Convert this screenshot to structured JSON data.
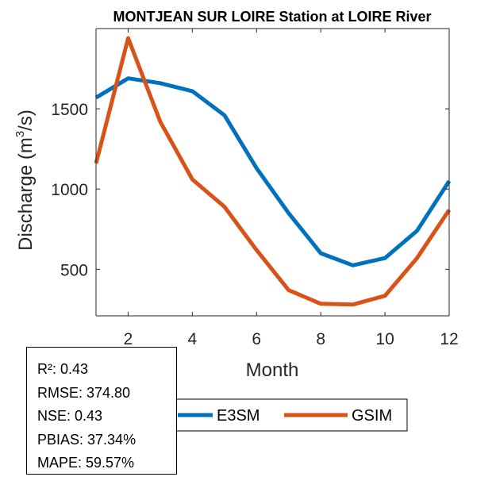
{
  "chart_data": {
    "type": "line",
    "title": "MONTJEAN SUR LOIRE  Station at  LOIRE  River",
    "xlabel": "Month",
    "ylabel": "Discharge (m",
    "ylabel_sup": "3",
    "ylabel_end": "/s)",
    "xlim": [
      1,
      12
    ],
    "ylim": [
      210,
      2000
    ],
    "xticks": [
      2,
      4,
      6,
      8,
      10,
      12
    ],
    "yticks": [
      500,
      1000,
      1500
    ],
    "x": [
      1,
      2,
      3,
      4,
      5,
      6,
      7,
      8,
      9,
      10,
      11,
      12
    ],
    "series": [
      {
        "name": "E3SM",
        "color": "#0072BD",
        "values": [
          1570,
          1690,
          1660,
          1610,
          1460,
          1130,
          850,
          600,
          525,
          570,
          740,
          1050
        ]
      },
      {
        "name": "GSIM",
        "color": "#D95319",
        "values": [
          1160,
          1940,
          1420,
          1060,
          890,
          620,
          370,
          285,
          280,
          335,
          570,
          870
        ]
      }
    ],
    "legend_position": "bottom-right",
    "grid": false
  },
  "stats": {
    "r2": "R²: 0.43",
    "rmse": "RMSE: 374.80",
    "nse": "NSE: 0.43",
    "pbias": "PBIAS: 37.34%",
    "mape": "MAPE: 59.57%"
  }
}
